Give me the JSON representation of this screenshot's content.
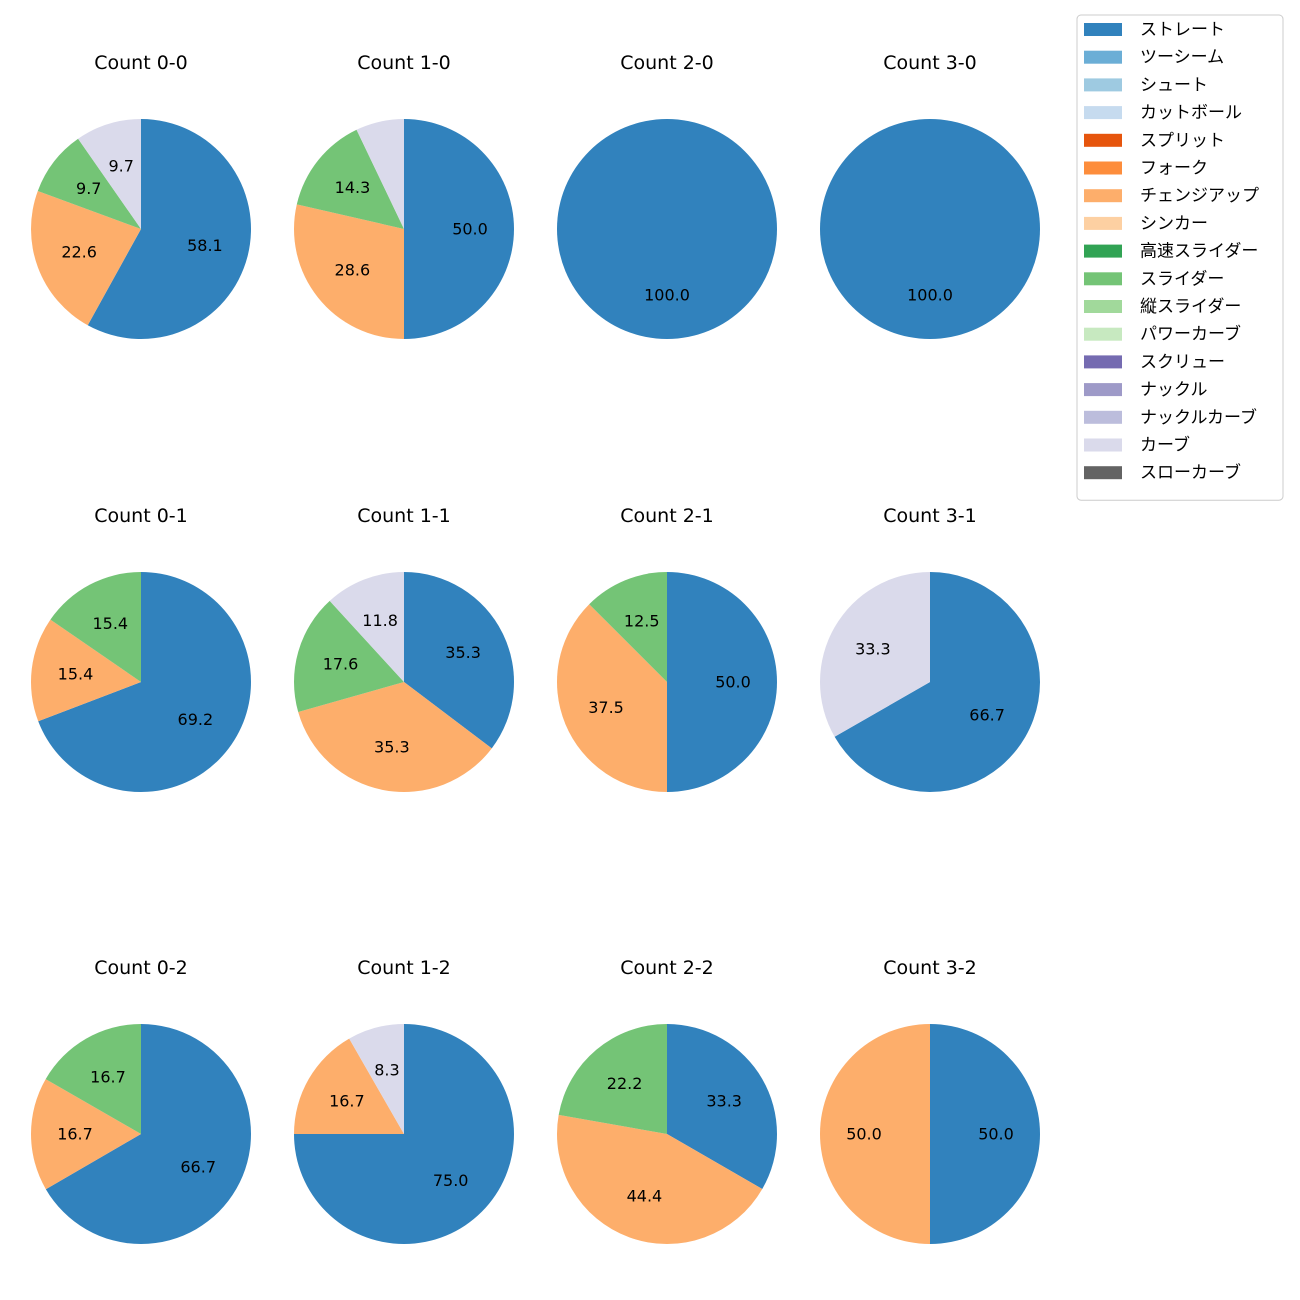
{
  "chart_data": {
    "type": "pie",
    "legend": {
      "placement": "top-right",
      "entries": [
        {
          "name": "ストレート",
          "color": "#3182bd"
        },
        {
          "name": "ツーシーム",
          "color": "#6baed6"
        },
        {
          "name": "シュート",
          "color": "#9ecae1"
        },
        {
          "name": "カットボール",
          "color": "#c6dbef"
        },
        {
          "name": "スプリット",
          "color": "#e6550d"
        },
        {
          "name": "フォーク",
          "color": "#fd8d3c"
        },
        {
          "name": "チェンジアップ",
          "color": "#fdae6b"
        },
        {
          "name": "シンカー",
          "color": "#fdd0a2"
        },
        {
          "name": "高速スライダー",
          "color": "#31a354"
        },
        {
          "name": "スライダー",
          "color": "#74c476"
        },
        {
          "name": "縦スライダー",
          "color": "#a1d99b"
        },
        {
          "name": "パワーカーブ",
          "color": "#c7e9c0"
        },
        {
          "name": "スクリュー",
          "color": "#756bb1"
        },
        {
          "name": "ナックル",
          "color": "#9e9ac8"
        },
        {
          "name": "ナックルカーブ",
          "color": "#bcbddc"
        },
        {
          "name": "カーブ",
          "color": "#dadaeb"
        },
        {
          "name": "スローカーブ",
          "color": "#636363"
        }
      ]
    },
    "pies": [
      {
        "title": "Count 0-0",
        "slices": [
          {
            "pitch": "ストレート",
            "value": 58.1
          },
          {
            "pitch": "チェンジアップ",
            "value": 22.6
          },
          {
            "pitch": "スライダー",
            "value": 9.7
          },
          {
            "pitch": "カーブ",
            "value": 9.7
          }
        ]
      },
      {
        "title": "Count 1-0",
        "slices": [
          {
            "pitch": "ストレート",
            "value": 50.0
          },
          {
            "pitch": "チェンジアップ",
            "value": 28.6
          },
          {
            "pitch": "スライダー",
            "value": 14.3
          },
          {
            "pitch": "カーブ",
            "value": 7.1,
            "label": ""
          }
        ]
      },
      {
        "title": "Count 2-0",
        "slices": [
          {
            "pitch": "ストレート",
            "value": 100.0
          }
        ]
      },
      {
        "title": "Count 3-0",
        "slices": [
          {
            "pitch": "ストレート",
            "value": 100.0
          }
        ]
      },
      {
        "title": "Count 0-1",
        "slices": [
          {
            "pitch": "ストレート",
            "value": 69.2
          },
          {
            "pitch": "チェンジアップ",
            "value": 15.4
          },
          {
            "pitch": "スライダー",
            "value": 15.4
          }
        ]
      },
      {
        "title": "Count 1-1",
        "slices": [
          {
            "pitch": "ストレート",
            "value": 35.3
          },
          {
            "pitch": "チェンジアップ",
            "value": 35.3
          },
          {
            "pitch": "スライダー",
            "value": 17.6
          },
          {
            "pitch": "カーブ",
            "value": 11.8
          }
        ]
      },
      {
        "title": "Count 2-1",
        "slices": [
          {
            "pitch": "ストレート",
            "value": 50.0
          },
          {
            "pitch": "チェンジアップ",
            "value": 37.5
          },
          {
            "pitch": "スライダー",
            "value": 12.5
          }
        ]
      },
      {
        "title": "Count 3-1",
        "slices": [
          {
            "pitch": "ストレート",
            "value": 66.7
          },
          {
            "pitch": "カーブ",
            "value": 33.3
          }
        ]
      },
      {
        "title": "Count 0-2",
        "slices": [
          {
            "pitch": "ストレート",
            "value": 66.7
          },
          {
            "pitch": "チェンジアップ",
            "value": 16.7
          },
          {
            "pitch": "スライダー",
            "value": 16.7
          }
        ]
      },
      {
        "title": "Count 1-2",
        "slices": [
          {
            "pitch": "ストレート",
            "value": 75.0
          },
          {
            "pitch": "チェンジアップ",
            "value": 16.7
          },
          {
            "pitch": "カーブ",
            "value": 8.3
          }
        ]
      },
      {
        "title": "Count 2-2",
        "slices": [
          {
            "pitch": "ストレート",
            "value": 33.3
          },
          {
            "pitch": "チェンジアップ",
            "value": 44.4
          },
          {
            "pitch": "スライダー",
            "value": 22.2
          }
        ]
      },
      {
        "title": "Count 3-2",
        "slices": [
          {
            "pitch": "ストレート",
            "value": 50.0
          },
          {
            "pitch": "チェンジアップ",
            "value": 50.0
          }
        ]
      }
    ]
  }
}
